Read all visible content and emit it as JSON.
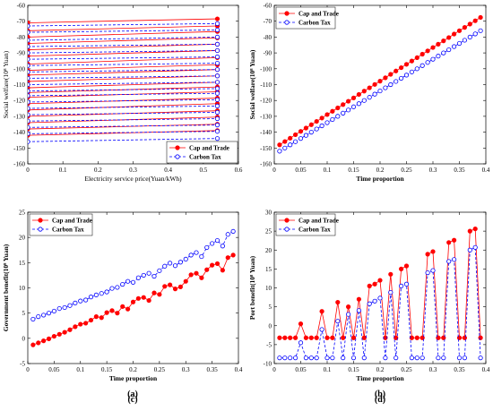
{
  "colors": {
    "cap_and_trade": "#ff0000",
    "carbon_tax": "#0000ff",
    "axis": "#000000"
  },
  "chart_data": [
    {
      "panel": "(a)",
      "type": "line",
      "xlabel": "Electricity service price(Yuan/kWh)",
      "ylabel": "Social welfare(10⁸ Yuan)",
      "xlim": [
        0,
        0.6
      ],
      "ylim": [
        -160,
        -60
      ],
      "xticks": [
        "0",
        "0.1",
        "0.2",
        "0.3",
        "0.4",
        "0.5",
        "0.6"
      ],
      "yticks": [
        "-160",
        "-150",
        "-140",
        "-130",
        "-120",
        "-110",
        "-100",
        "-90",
        "-80",
        "-70",
        "-60"
      ],
      "legend": "bottom-right",
      "x": [
        0,
        0.54
      ],
      "series": [
        {
          "name": "Cap and Trade",
          "color": "#ff0000",
          "style": "solid",
          "marker": "filled-circle",
          "segments": [
            [
              -71,
              -68.5
            ],
            [
              -76,
              -73
            ],
            [
              -80,
              -76.5
            ],
            [
              -84,
              -80.5
            ],
            [
              -88,
              -84.5
            ],
            [
              -92,
              -88.5
            ],
            [
              -97,
              -93
            ],
            [
              -101,
              -97.5
            ],
            [
              -104,
              -100.5
            ],
            [
              -108,
              -104.5
            ],
            [
              -112,
              -108.5
            ],
            [
              -115,
              -111.5
            ],
            [
              -118,
              -114.5
            ],
            [
              -122,
              -118.5
            ],
            [
              -126,
              -122
            ],
            [
              -130,
              -126.5
            ],
            [
              -134,
              -130.5
            ],
            [
              -138,
              -135
            ],
            [
              -142,
              -139
            ]
          ]
        },
        {
          "name": "Carbon Tax",
          "color": "#0000ff",
          "style": "dashed",
          "marker": "open-circle",
          "segments": [
            [
              -73,
              -71.5
            ],
            [
              -77,
              -75.5
            ],
            [
              -82,
              -80
            ],
            [
              -86,
              -84.5
            ],
            [
              -90,
              -88.5
            ],
            [
              -94,
              -92.5
            ],
            [
              -98,
              -96.5
            ],
            [
              -102,
              -100.5
            ],
            [
              -106,
              -104.5
            ],
            [
              -110,
              -108.5
            ],
            [
              -114,
              -112.5
            ],
            [
              -117,
              -115.5
            ],
            [
              -121,
              -119.5
            ],
            [
              -125,
              -123.5
            ],
            [
              -129,
              -127.5
            ],
            [
              -133,
              -131.5
            ],
            [
              -137,
              -135.5
            ],
            [
              -141,
              -139.5
            ],
            [
              -146,
              -144
            ]
          ]
        }
      ]
    },
    {
      "panel": "(b)",
      "type": "line",
      "xlabel": "Time proportion",
      "ylabel": "Social welfare(10⁸ Yuan)",
      "xlim": [
        0,
        0.4
      ],
      "ylim": [
        -160,
        -60
      ],
      "xticks": [
        "0",
        "0.05",
        "0.1",
        "0.15",
        "0.2",
        "0.25",
        "0.3",
        "0.35",
        "0.4"
      ],
      "yticks": [
        "-160",
        "-150",
        "-140",
        "-130",
        "-120",
        "-110",
        "-100",
        "-90",
        "-80",
        "-70",
        "-60"
      ],
      "legend": "top-left",
      "x_start": 0.01,
      "x_step": 0.01,
      "series": [
        {
          "name": "Cap and Trade",
          "color": "#ff0000",
          "style": "solid",
          "marker": "filled-circle",
          "values": [
            -148,
            -145.9,
            -143.8,
            -141.6,
            -139.5,
            -137.4,
            -135.3,
            -133.2,
            -131.1,
            -128.9,
            -126.8,
            -124.7,
            -122.6,
            -120.5,
            -118.4,
            -116.2,
            -114.1,
            -112,
            -109.9,
            -107.8,
            -105.7,
            -103.5,
            -101.4,
            -99.3,
            -97.2,
            -95.1,
            -93,
            -90.8,
            -88.7,
            -86.6,
            -84.5,
            -82.4,
            -80.3,
            -78.1,
            -76,
            -73.9,
            -71.8,
            -69.7,
            -67.6
          ]
        },
        {
          "name": "Carbon Tax",
          "color": "#0000ff",
          "style": "dashed",
          "marker": "open-circle",
          "values": [
            -152,
            -150,
            -148,
            -146,
            -144,
            -142,
            -140,
            -138,
            -136,
            -134,
            -132,
            -130,
            -128,
            -126,
            -124,
            -122,
            -120,
            -118,
            -116,
            -114,
            -112,
            -110,
            -108,
            -106,
            -104,
            -102,
            -100,
            -98,
            -96,
            -94,
            -92,
            -90,
            -88,
            -86,
            -84,
            -82,
            -80,
            -78,
            -76
          ]
        }
      ]
    },
    {
      "panel": "(c)",
      "type": "line",
      "xlabel": "Time proportion",
      "ylabel": "Government benefit(10⁸ Yuan)",
      "xlim": [
        0,
        0.4
      ],
      "ylim": [
        -5,
        25
      ],
      "xticks": [
        "0",
        "0.05",
        "0.1",
        "0.15",
        "0.2",
        "0.25",
        "0.3",
        "0.35",
        "0.4"
      ],
      "yticks": [
        "-5",
        "0",
        "5",
        "10",
        "15",
        "20",
        "25"
      ],
      "legend": "top-left",
      "x_start": 0.01,
      "x_step": 0.01,
      "series": [
        {
          "name": "Cap and Trade",
          "color": "#ff0000",
          "style": "solid",
          "marker": "filled-circle",
          "values": [
            -1.3,
            -0.9,
            -0.5,
            -0.1,
            0.4,
            0.8,
            1.2,
            1.7,
            2.3,
            2.8,
            3.0,
            3.6,
            4.3,
            4.1,
            5.1,
            5.5,
            5.0,
            6.3,
            5.8,
            7.2,
            7.9,
            8.1,
            7.5,
            9.0,
            8.7,
            10.3,
            10.6,
            9.8,
            10.2,
            11.3,
            12.6,
            12.9,
            12.0,
            13.6,
            14.5,
            14.8,
            13.5,
            16.0,
            16.5
          ]
        },
        {
          "name": "Carbon Tax",
          "color": "#0000ff",
          "style": "dashed",
          "marker": "open-circle",
          "values": [
            3.8,
            4.3,
            4.6,
            5.0,
            5.4,
            5.9,
            6.1,
            6.5,
            7.0,
            7.4,
            7.6,
            8.2,
            8.6,
            8.9,
            9.2,
            9.9,
            10.1,
            10.7,
            11.3,
            11.1,
            12.0,
            12.5,
            12.9,
            12.3,
            13.4,
            14.3,
            14.9,
            14.4,
            15.1,
            15.7,
            16.5,
            17.0,
            16.2,
            18.0,
            18.8,
            19.4,
            18.3,
            20.6,
            21.2
          ]
        }
      ]
    },
    {
      "panel": "(d)",
      "type": "line",
      "xlabel": "Time proportion",
      "ylabel": "Port benefit(10⁸ Yuan)",
      "xlim": [
        0,
        0.4
      ],
      "ylim": [
        -10,
        30
      ],
      "xticks": [
        "0",
        "0.05",
        "0.1",
        "0.15",
        "0.2",
        "0.25",
        "0.3",
        "0.35",
        "0.4"
      ],
      "yticks": [
        "-10",
        "-5",
        "0",
        "5",
        "10",
        "15",
        "20",
        "25",
        "30"
      ],
      "legend": "top-left",
      "x_start": 0.01,
      "x_step": 0.01,
      "series": [
        {
          "name": "Cap and Trade",
          "color": "#ff0000",
          "style": "solid",
          "marker": "filled-circle",
          "values": [
            -3.2,
            -3.2,
            -3.2,
            -3.2,
            0.5,
            -3.2,
            -3.2,
            -3.2,
            3.8,
            -3.2,
            -3.2,
            6.2,
            -3.2,
            5.0,
            -3.2,
            7.0,
            -3.2,
            10.5,
            11.0,
            12.0,
            -3.2,
            13.6,
            -3.2,
            15.0,
            15.8,
            -3.2,
            -3.2,
            -3.2,
            18.9,
            19.6,
            -3.2,
            -3.2,
            22.0,
            22.6,
            -3.2,
            -3.2,
            25.0,
            25.6,
            -3.2
          ]
        },
        {
          "name": "Carbon Tax",
          "color": "#0000ff",
          "style": "dashed",
          "marker": "open-circle",
          "values": [
            -8.5,
            -8.5,
            -8.5,
            -8.5,
            -4.5,
            -8.5,
            -8.5,
            -8.5,
            -1.0,
            -8.5,
            -8.5,
            1.2,
            -8.5,
            3.0,
            -8.5,
            4.0,
            -8.5,
            5.8,
            6.5,
            7.3,
            -8.5,
            8.8,
            -8.5,
            10.5,
            11.0,
            -8.5,
            -8.5,
            -8.5,
            14.0,
            14.6,
            -8.5,
            -8.5,
            17.0,
            17.5,
            -8.5,
            -8.5,
            20.0,
            20.7,
            -8.5
          ]
        }
      ]
    }
  ]
}
